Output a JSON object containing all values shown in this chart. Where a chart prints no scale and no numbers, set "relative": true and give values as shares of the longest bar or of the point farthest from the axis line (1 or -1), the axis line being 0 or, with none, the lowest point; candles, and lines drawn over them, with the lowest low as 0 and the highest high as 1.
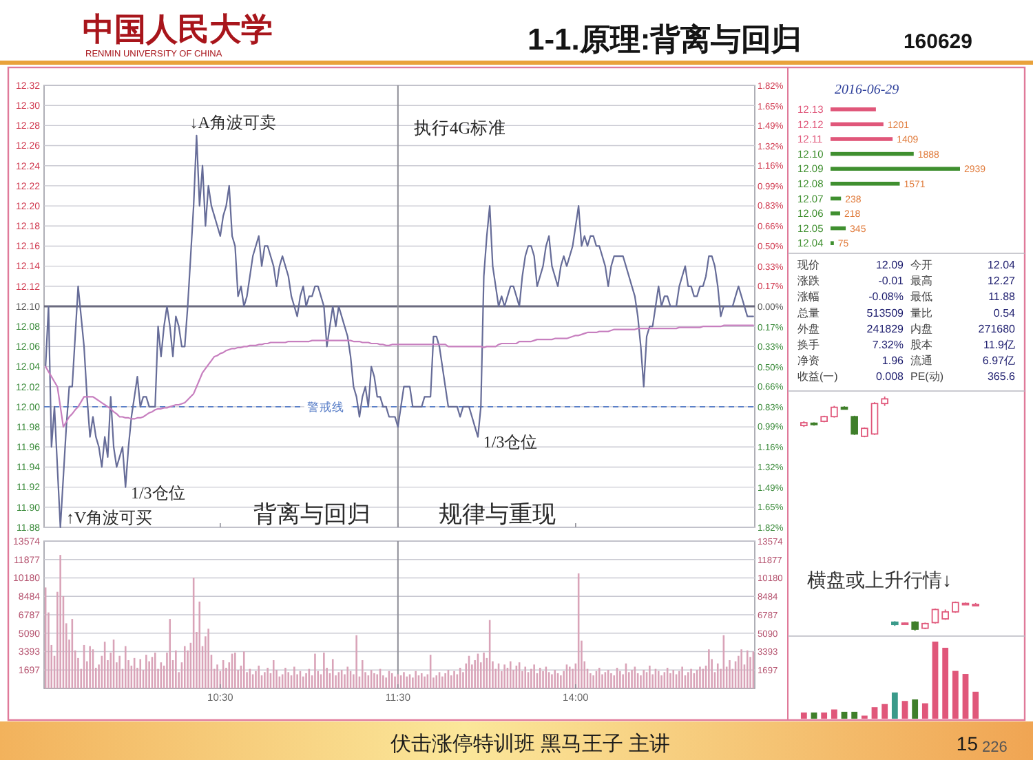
{
  "chart_data": [
    {
      "type": "other",
      "title": "1-1.原理:背离与回归",
      "subtitle": "160629",
      "annotations": [
        "中国人民大学",
        "RENMIN UNIVERSITY OF CHINA",
        "伏击涨停特训班 黑马王子 主讲",
        "15",
        "226"
      ]
    },
    {
      "type": "line",
      "tick_labels": "y",
      "categories": [
        null,
        null,
        null,
        null,
        null,
        null,
        null,
        null,
        null,
        null,
        null,
        null,
        null,
        null,
        null,
        null,
        null,
        null,
        null,
        null,
        null,
        null,
        null,
        null,
        null,
        null,
        null,
        null,
        null,
        null,
        null,
        null,
        null,
        null,
        null,
        null,
        null,
        null,
        null,
        null,
        null,
        null,
        null,
        null,
        null,
        null,
        null,
        null,
        null,
        null,
        null,
        null,
        null,
        null,
        null,
        null,
        null,
        null,
        null,
        "10:30",
        null,
        null,
        null,
        null,
        null,
        null,
        null,
        null,
        null,
        null,
        null,
        null,
        null,
        null,
        null,
        null,
        null,
        null,
        null,
        null,
        null,
        null,
        null,
        null,
        null,
        null,
        null,
        null,
        null,
        null,
        null,
        null,
        null,
        null,
        null,
        null,
        null,
        null,
        null,
        null,
        null,
        null,
        null,
        null,
        null,
        null,
        null,
        null,
        null,
        null,
        null,
        null,
        null,
        null,
        null,
        null,
        null,
        null,
        null,
        "11:30",
        null,
        null,
        null,
        null,
        null,
        null,
        null,
        null,
        null,
        null,
        null,
        null,
        null,
        null,
        null,
        null,
        null,
        null,
        null,
        null,
        null,
        null,
        null,
        null,
        null,
        null,
        null,
        null,
        null,
        null,
        null,
        null,
        null,
        null,
        null,
        null,
        null,
        null,
        null,
        null,
        null,
        null,
        null,
        null,
        null,
        null,
        null,
        null,
        null,
        null,
        null,
        null,
        null,
        null,
        null,
        null,
        null,
        null,
        null,
        "14:00",
        null,
        null,
        null,
        null,
        null,
        null,
        null,
        null,
        null,
        null,
        null,
        null,
        null,
        null,
        null,
        null,
        null,
        null,
        null,
        null,
        null,
        null,
        null,
        null,
        null,
        null,
        null,
        null,
        null,
        null,
        null,
        null,
        null,
        null,
        null,
        null,
        null,
        null,
        null,
        null,
        null,
        null,
        null,
        null,
        null,
        null,
        null,
        null,
        null,
        null,
        null,
        null,
        null,
        null,
        null,
        null,
        null,
        null,
        null,
        null
      ],
      "ylim": [
        11.88,
        12.32
      ],
      "yticks": [
        {
          "value": 11.88,
          "label": "11.88"
        },
        {
          "value": 11.9,
          "label": "11.90"
        },
        {
          "value": 11.92,
          "label": "11.92"
        },
        {
          "value": 11.94,
          "label": "11.94"
        },
        {
          "value": 11.96,
          "label": "11.96"
        },
        {
          "value": 11.98,
          "label": "11.98"
        },
        {
          "value": 12,
          "label": "12.00"
        },
        {
          "value": 12.02,
          "label": "12.02"
        },
        {
          "value": 12.04,
          "label": "12.04"
        },
        {
          "value": 12.06,
          "label": "12.06"
        },
        {
          "value": 12.08,
          "label": "12.08"
        },
        {
          "value": 12.1,
          "label": "12.10"
        },
        {
          "value": 12.12,
          "label": "12.12"
        },
        {
          "value": 12.14,
          "label": "12.14"
        },
        {
          "value": 12.16,
          "label": "12.16"
        },
        {
          "value": 12.18,
          "label": "12.18"
        },
        {
          "value": 12.2,
          "label": "12.20"
        },
        {
          "value": 12.22,
          "label": "12.22"
        },
        {
          "value": 12.24,
          "label": "12.24"
        },
        {
          "value": 12.26,
          "label": "12.26"
        },
        {
          "value": 12.28,
          "label": "12.28"
        },
        {
          "value": 12.3,
          "label": "12.30"
        },
        {
          "value": 12.32,
          "label": "12.32"
        }
      ],
      "y2lim": [
        -1.82,
        1.82
      ],
      "y2ticks": [
        {
          "value": 0,
          "label": "0.00%"
        },
        {
          "value": 0.17,
          "label": "0.17%"
        },
        {
          "value": 0.33,
          "label": "0.33%"
        },
        {
          "value": 0.5,
          "label": "0.50%"
        },
        {
          "value": 0.66,
          "label": "0.66%"
        },
        {
          "value": 0.83,
          "label": "0.83%"
        },
        {
          "value": 0.99,
          "label": "0.99%"
        },
        {
          "value": 1.16,
          "label": "1.16%"
        },
        {
          "value": 1.32,
          "label": "1.32%"
        },
        {
          "value": 1.49,
          "label": "1.49%"
        },
        {
          "value": 1.65,
          "label": "1.65%"
        },
        {
          "value": 1.82,
          "label": "1.82%"
        }
      ],
      "y3lim": [
        1.82,
        -1.82
      ],
      "y3ticks": [
        {
          "value": 0.17,
          "label": "0.17%"
        },
        {
          "value": 0.33,
          "label": "0.33%"
        },
        {
          "value": 0.5,
          "label": "0.50%"
        },
        {
          "value": 0.66,
          "label": "0.66%"
        },
        {
          "value": 0.83,
          "label": "0.83%"
        },
        {
          "value": 0.99,
          "label": "0.99%"
        },
        {
          "value": 1.16,
          "label": "1.16%"
        },
        {
          "value": 1.32,
          "label": "1.32%"
        },
        {
          "value": 1.49,
          "label": "1.49%"
        },
        {
          "value": 1.65,
          "label": "1.65%"
        },
        {
          "value": 1.82,
          "label": "1.82%"
        }
      ],
      "grid": "y",
      "ref_lines": [
        {
          "axis": "y",
          "value": 12.1,
          "color": "#6a6a7e"
        },
        {
          "axis": "y",
          "value": 12,
          "label": "警戒线",
          "color": "#5a7fc8",
          "line_style": "dashed"
        },
        {
          "axis": "x",
          "value": "11:30",
          "color": "#8f8f98"
        }
      ],
      "series": [
        {
          "color": "#666c98",
          "values": [
            12.04,
            12.1,
            11.96,
            12,
            11.94,
            11.88,
            11.93,
            11.98,
            12.02,
            12.02,
            12.07,
            12.12,
            12.09,
            12.06,
            12.01,
            11.97,
            11.99,
            11.97,
            11.96,
            11.94,
            11.97,
            11.95,
            12.01,
            11.96,
            11.94,
            11.95,
            11.96,
            11.92,
            11.96,
            11.99,
            12.01,
            12.03,
            12,
            12.01,
            12.01,
            12,
            12,
            12,
            12.08,
            12.05,
            12.08,
            12.1,
            12.08,
            12.05,
            12.09,
            12.08,
            12.06,
            12.06,
            12.1,
            12.15,
            12.2,
            12.27,
            12.2,
            12.24,
            12.18,
            12.22,
            12.2,
            12.19,
            12.18,
            12.17,
            12.19,
            12.2,
            12.22,
            12.17,
            12.16,
            12.11,
            12.12,
            12.1,
            12.11,
            12.13,
            12.15,
            12.16,
            12.17,
            12.14,
            12.16,
            12.16,
            12.15,
            12.14,
            12.12,
            12.14,
            12.15,
            12.14,
            12.13,
            12.11,
            12.1,
            12.09,
            12.11,
            12.12,
            12.1,
            12.11,
            12.11,
            12.12,
            12.12,
            12.11,
            12.1,
            12.06,
            12.08,
            12.1,
            12.08,
            12.1,
            12.09,
            12.08,
            12.07,
            12.05,
            12.02,
            12.01,
            11.99,
            12.01,
            12.02,
            12,
            12.04,
            12.03,
            12.01,
            12.01,
            12,
            12,
            11.99,
            11.99,
            11.99,
            11.98,
            12,
            12.02,
            12.02,
            12.02,
            12,
            12,
            12,
            12,
            12.01,
            12.01,
            12.01,
            12.07,
            12.07,
            12.06,
            12.04,
            12.02,
            12,
            12,
            12,
            12,
            11.99,
            12,
            12,
            12,
            11.99,
            11.98,
            11.97,
            12,
            12.13,
            12.17,
            12.2,
            12.14,
            12.12,
            12.1,
            12.11,
            12.1,
            12.11,
            12.12,
            12.12,
            12.11,
            12.1,
            12.13,
            12.15,
            12.16,
            12.16,
            12.15,
            12.12,
            12.13,
            12.14,
            12.16,
            12.17,
            12.14,
            12.13,
            12.12,
            12.14,
            12.15,
            12.14,
            12.15,
            12.16,
            12.18,
            12.2,
            12.16,
            12.17,
            12.16,
            12.17,
            12.17,
            12.16,
            12.16,
            12.15,
            12.14,
            12.12,
            12.14,
            12.15,
            12.15,
            12.15,
            12.15,
            12.14,
            12.13,
            12.12,
            12.11,
            12.09,
            12.06,
            12.02,
            12.07,
            12.08,
            12.08,
            12.1,
            12.12,
            12.1,
            12.11,
            12.11,
            12.1,
            12.1,
            12.1,
            12.12,
            12.13,
            12.14,
            12.12,
            12.12,
            12.11,
            12.11,
            12.12,
            12.12,
            12.13,
            12.15,
            12.15,
            12.14,
            12.12,
            12.09,
            12.1,
            12.1,
            12.1,
            12.1,
            12.11,
            12.12,
            12.11,
            12.1,
            12.09,
            12.09,
            12.09
          ]
        },
        {
          "color": "#c77fbf",
          "values": [
            12.04,
            12.035,
            12.03,
            12.025,
            12.02,
            12,
            11.98,
            11.985,
            11.99,
            11.993,
            11.997,
            12,
            12.005,
            12.01,
            12.01,
            12.01,
            12.01,
            12.008,
            12.006,
            12.004,
            12.002,
            12,
            11.998,
            11.995,
            11.993,
            11.99,
            11.99,
            11.989,
            11.989,
            11.988,
            11.988,
            11.989,
            11.989,
            11.99,
            11.992,
            11.994,
            11.995,
            11.997,
            11.998,
            11.998,
            11.999,
            11.999,
            12,
            12.001,
            12.002,
            12.002,
            12.003,
            12.004,
            12.007,
            12.01,
            12.013,
            12.02,
            12.027,
            12.034,
            12.038,
            12.042,
            12.046,
            12.05,
            12.051,
            12.053,
            12.054,
            12.056,
            12.057,
            12.058,
            12.058,
            12.059,
            12.059,
            12.06,
            12.06,
            12.061,
            12.061,
            12.061,
            12.062,
            12.062,
            12.063,
            12.063,
            12.064,
            12.064,
            12.064,
            12.064,
            12.064,
            12.064,
            12.065,
            12.065,
            12.065,
            12.065,
            12.065,
            12.065,
            12.065,
            12.065,
            12.066,
            12.066,
            12.066,
            12.066,
            12.066,
            12.066,
            12.066,
            12.066,
            12.066,
            12.066,
            12.066,
            12.066,
            12.066,
            12.066,
            12.065,
            12.065,
            12.065,
            12.064,
            12.064,
            12.064,
            12.063,
            12.063,
            12.063,
            12.062,
            12.062,
            12.061,
            12.061,
            12.062,
            12.062,
            12.062,
            12.062,
            12.062,
            12.062,
            12.062,
            12.062,
            12.062,
            12.062,
            12.062,
            12.062,
            12.062,
            12.062,
            12.062,
            12.062,
            12.062,
            12.062,
            12.062,
            12.06,
            12.06,
            12.06,
            12.06,
            12.06,
            12.06,
            12.06,
            12.06,
            12.06,
            12.06,
            12.06,
            12.06,
            12.059,
            12.06,
            12.06,
            12.06,
            12.06,
            12.062,
            12.063,
            12.063,
            12.063,
            12.063,
            12.063,
            12.063,
            12.065,
            12.065,
            12.065,
            12.065,
            12.065,
            12.066,
            12.067,
            12.067,
            12.067,
            12.067,
            12.067,
            12.067,
            12.068,
            12.068,
            12.068,
            12.068,
            12.068,
            12.069,
            12.07,
            12.071,
            12.071,
            12.072,
            12.073,
            12.074,
            12.074,
            12.074,
            12.074,
            12.075,
            12.075,
            12.075,
            12.075,
            12.076,
            12.077,
            12.077,
            12.077,
            12.077,
            12.077,
            12.077,
            12.077,
            12.077,
            12.078,
            12.078,
            12.078,
            12.078,
            12.078,
            12.078,
            12.078,
            12.078,
            12.078,
            12.078,
            12.078,
            12.078,
            12.078,
            12.078,
            12.079,
            12.079,
            12.079,
            12.079,
            12.079,
            12.079,
            12.079,
            12.079,
            12.08,
            12.08,
            12.08,
            12.08,
            12.08,
            12.08,
            12.08,
            12.081,
            12.081,
            12.081,
            12.081,
            12.081,
            12.081,
            12.081,
            12.081,
            12.081,
            12.081,
            12.081
          ]
        }
      ],
      "annotations": [
        "↓A角波可卖",
        "↑V角波可买",
        "1/3仓位",
        "1/3仓位",
        "执行4G标准",
        "背离与回归",
        "规律与重现"
      ]
    },
    {
      "type": "bar",
      "color": "#d9a3b8",
      "categories": [
        null,
        null,
        null,
        null,
        null,
        null,
        null,
        null,
        null,
        null,
        null,
        null,
        null,
        null,
        null,
        null,
        null,
        null,
        null,
        null,
        null,
        null,
        null,
        null,
        null,
        null,
        null,
        null,
        null,
        null,
        null,
        null,
        null,
        null,
        null,
        null,
        null,
        null,
        null,
        null,
        null,
        null,
        null,
        null,
        null,
        null,
        null,
        null,
        null,
        null,
        null,
        null,
        null,
        null,
        null,
        null,
        null,
        null,
        null,
        "10:30",
        null,
        null,
        null,
        null,
        null,
        null,
        null,
        null,
        null,
        null,
        null,
        null,
        null,
        null,
        null,
        null,
        null,
        null,
        null,
        null,
        null,
        null,
        null,
        null,
        null,
        null,
        null,
        null,
        null,
        null,
        null,
        null,
        null,
        null,
        null,
        null,
        null,
        null,
        null,
        null,
        null,
        null,
        null,
        null,
        null,
        null,
        null,
        null,
        null,
        null,
        null,
        null,
        null,
        null,
        null,
        null,
        null,
        null,
        null,
        "11:30",
        null,
        null,
        null,
        null,
        null,
        null,
        null,
        null,
        null,
        null,
        null,
        null,
        null,
        null,
        null,
        null,
        null,
        null,
        null,
        null,
        null,
        null,
        null,
        null,
        null,
        null,
        null,
        null,
        null,
        null,
        null,
        null,
        null,
        null,
        null,
        null,
        null,
        null,
        null,
        null,
        null,
        null,
        null,
        null,
        null,
        null,
        null,
        null,
        null,
        null,
        null,
        null,
        null,
        null,
        null,
        null,
        null,
        null,
        null,
        "14:00",
        null,
        null,
        null,
        null,
        null,
        null,
        null,
        null,
        null,
        null,
        null,
        null,
        null,
        null,
        null,
        null,
        null,
        null,
        null,
        null,
        null,
        null,
        null,
        null,
        null,
        null,
        null,
        null,
        null,
        null,
        null,
        null,
        null,
        null,
        null,
        null,
        null,
        null,
        null,
        null,
        null,
        null,
        null,
        null,
        null,
        null,
        null,
        null,
        null,
        null,
        null,
        null,
        null,
        null,
        null,
        null,
        null,
        null,
        null,
        null
      ],
      "ylim": [
        0,
        13574
      ],
      "yticks": [
        1697,
        3393,
        5090,
        6787,
        8484,
        10180,
        11877,
        13574
      ],
      "y2lim": [
        0,
        13574
      ],
      "y2ticks": [
        1697,
        3393,
        5090,
        6787,
        8484,
        10180,
        11877,
        13574
      ],
      "grid": "y",
      "ref_lines": [
        {
          "axis": "x",
          "value": "11:30",
          "color": "#8f8f98"
        }
      ],
      "values": [
        9300,
        7000,
        4000,
        3000,
        8900,
        12300,
        8500,
        6000,
        4500,
        6400,
        3500,
        2800,
        1800,
        4000,
        2500,
        3900,
        3600,
        1900,
        2200,
        3000,
        4300,
        2600,
        3300,
        4500,
        2400,
        3000,
        1800,
        3900,
        2600,
        2100,
        2800,
        1900,
        2700,
        1700,
        3100,
        2500,
        2900,
        3300,
        1800,
        2400,
        2100,
        3300,
        6400,
        2600,
        3500,
        1500,
        2400,
        3900,
        3500,
        4200,
        10200,
        5200,
        8000,
        3900,
        4800,
        5500,
        3100,
        1800,
        2200,
        1600,
        2600,
        1900,
        2400,
        3200,
        3300,
        1700,
        2100,
        3400,
        1500,
        1800,
        1300,
        1600,
        2100,
        1200,
        1500,
        1900,
        1400,
        2600,
        1700,
        1100,
        1300,
        1900,
        1500,
        1200,
        2000,
        1300,
        1600,
        1100,
        1400,
        1800,
        1200,
        3200,
        1600,
        1300,
        3300,
        1900,
        1400,
        2700,
        1200,
        1500,
        1700,
        1300,
        2000,
        1600,
        1300,
        4900,
        1100,
        2600,
        1500,
        1200,
        1700,
        1400,
        1300,
        1800,
        1200,
        1000,
        1600,
        1400,
        1100,
        1300,
        1200,
        1500,
        1100,
        1300,
        1000,
        1600,
        1200,
        1400,
        1100,
        1300,
        3100,
        1000,
        1200,
        1500,
        1100,
        1400,
        1700,
        1200,
        1600,
        1300,
        1900,
        1500,
        2300,
        3000,
        2200,
        2600,
        3200,
        2400,
        3300,
        2800,
        6300,
        2500,
        1800,
        2300,
        1600,
        2200,
        1900,
        2500,
        1700,
        2100,
        2400,
        1600,
        2000,
        1500,
        1800,
        2200,
        1400,
        1900,
        1600,
        2000,
        1500,
        1300,
        1700,
        1400,
        1200,
        1600,
        2200,
        2000,
        1800,
        2300,
        10600,
        4400,
        2500,
        1800,
        1400,
        1200,
        1600,
        1900,
        1300,
        1500,
        1700,
        1400,
        1200,
        1900,
        1600,
        1300,
        2300,
        1500,
        1700,
        2000,
        1400,
        1200,
        1700,
        1500,
        2100,
        1300,
        1800,
        1600,
        1200,
        1500,
        1900,
        1400,
        1700,
        1300,
        1600,
        2000,
        1200,
        1500,
        1800,
        1400,
        1700,
        2000,
        1800,
        2100,
        3600,
        2700,
        1500,
        2300,
        1800,
        4900,
        2000,
        2600,
        1800,
        2500,
        3000,
        3600,
        2200,
        3500,
        2900,
        3400
      ]
    },
    {
      "type": "bar",
      "orientation": "horizontal",
      "categories": [
        "12.13",
        "12.12",
        "12.11",
        "12.10",
        "12.09",
        "12.08",
        "12.07",
        "12.06",
        "12.05",
        "12.04"
      ],
      "values": [
        1030,
        1201,
        1409,
        1888,
        2939,
        1571,
        238,
        218,
        345,
        75
      ],
      "value_labels": [
        null,
        "1201",
        "1409",
        "1888",
        "2939",
        "1571",
        "238",
        "218",
        "345",
        "75"
      ],
      "colors": [
        "#e0577a",
        "#e0577a",
        "#e0577a",
        "#3f8f2f",
        "#3f8f2f",
        "#3f8f2f",
        "#3f8f2f",
        "#3f8f2f",
        "#3f8f2f",
        "#3f8f2f"
      ],
      "annotations": [
        "2016-06-29"
      ]
    },
    {
      "type": "other",
      "annotations": [
        "现价",
        "12.09",
        "今开",
        "12.04",
        "涨跌",
        "-0.01",
        "最高",
        "12.27",
        "涨幅",
        "-0.08%",
        "最低",
        "11.88",
        "总量",
        "513509",
        "量比",
        "0.54",
        "外盘",
        "241829",
        "内盘",
        "271680",
        "换手",
        "7.32%",
        "股本",
        "11.9亿",
        "净资",
        "1.96",
        "流通",
        "6.97亿",
        "收益(一)",
        "0.008",
        "PE(动)",
        "365.6"
      ]
    },
    {
      "type": "candlestick",
      "relative": true,
      "categories": [
        null,
        null,
        null,
        null,
        null,
        null,
        null,
        null,
        null,
        null,
        null,
        null,
        null,
        null,
        null,
        null,
        null,
        null
      ],
      "ohlc": [
        [
          0.876,
          0.894,
          0.87,
          0.888
        ],
        [
          0.886,
          0.89,
          0.876,
          0.88
        ],
        [
          0.894,
          0.918,
          0.89,
          0.914
        ],
        [
          0.914,
          0.96,
          0.91,
          0.954
        ],
        [
          0.954,
          0.958,
          0.944,
          0.946
        ],
        [
          0.914,
          0.918,
          0.836,
          0.84
        ],
        [
          0.83,
          0.868,
          0.826,
          0.864
        ],
        [
          0.84,
          0.976,
          0.836,
          0.97
        ],
        [
          0.97,
          1,
          0.96,
          0.99
        ],
        [
          0.036,
          0.04,
          0.02,
          0.026
        ],
        [
          0.028,
          0.034,
          0.026,
          0.032
        ],
        [
          0.036,
          0.04,
          0,
          0.006
        ],
        [
          0.01,
          0.034,
          0.006,
          0.03
        ],
        [
          0.034,
          0.094,
          0.03,
          0.09
        ],
        [
          0.05,
          0.09,
          0.046,
          0.08
        ],
        [
          0.08,
          0.124,
          0.076,
          0.12
        ],
        [
          0.114,
          0.12,
          0.11,
          0.116
        ],
        [
          0.11,
          0.118,
          0.106,
          0.112
        ]
      ],
      "colors": [
        "#e0577a",
        "#3f7f2a",
        "#e0577a",
        "#e0577a",
        "#3f7f2a",
        "#3f7f2a",
        "#e0577a",
        "#e0577a",
        "#e0577a",
        "#3a9a8a",
        "#e0577a",
        "#3f7f2a",
        "#e0577a",
        "#e0577a",
        "#e0577a",
        "#e0577a",
        "#e0577a",
        "#e0577a"
      ],
      "annotations": [
        "横盘或上升行情↓"
      ]
    },
    {
      "type": "bar",
      "relative": true,
      "categories": [
        null,
        null,
        null,
        null,
        null,
        null,
        null,
        null,
        null,
        null,
        null,
        null,
        null,
        null,
        null,
        null,
        null,
        null
      ],
      "values": [
        0.08,
        0.08,
        0.08,
        0.12,
        0.09,
        0.09,
        0.04,
        0.15,
        0.19,
        0.34,
        0.23,
        0.25,
        0.2,
        1,
        0.92,
        0.62,
        0.58,
        0.35
      ],
      "colors": [
        "#e0577a",
        "#3f7f2a",
        "#e0577a",
        "#e0577a",
        "#3f7f2a",
        "#3f7f2a",
        "#e0577a",
        "#e0577a",
        "#e0577a",
        "#3a9a8a",
        "#e0577a",
        "#3f7f2a",
        "#e0577a",
        "#e0577a",
        "#e0577a",
        "#e0577a",
        "#e0577a",
        "#e0577a"
      ]
    }
  ]
}
